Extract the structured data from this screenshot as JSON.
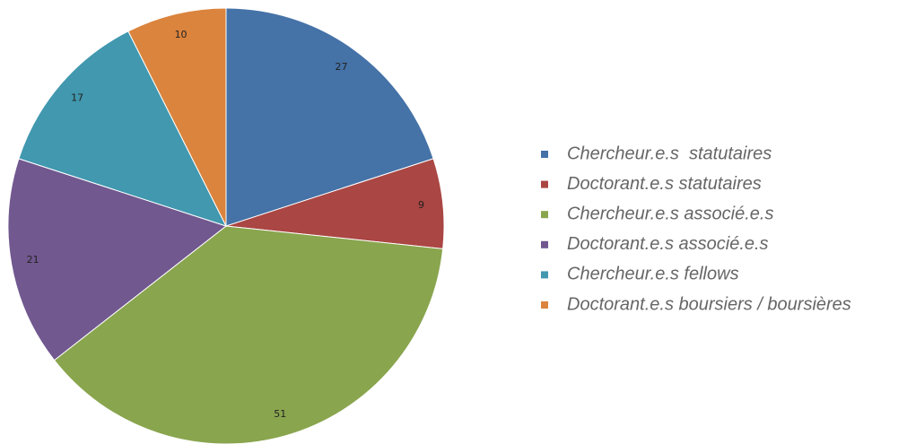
{
  "chart_data": {
    "type": "pie",
    "categories": [
      "Chercheur.e.s  statutaires",
      "Doctorant.e.s statutaires",
      "Chercheur.e.s associé.e.s",
      "Doctorant.e.s associé.e.s",
      "Chercheur.e.s fellows",
      "Doctorant.e.s boursiers / boursières"
    ],
    "values": [
      27,
      9,
      51,
      21,
      17,
      10
    ],
    "colors": [
      "#4572a7",
      "#aa4643",
      "#89a54e",
      "#71588f",
      "#4198af",
      "#db843d"
    ],
    "legend": "right"
  }
}
